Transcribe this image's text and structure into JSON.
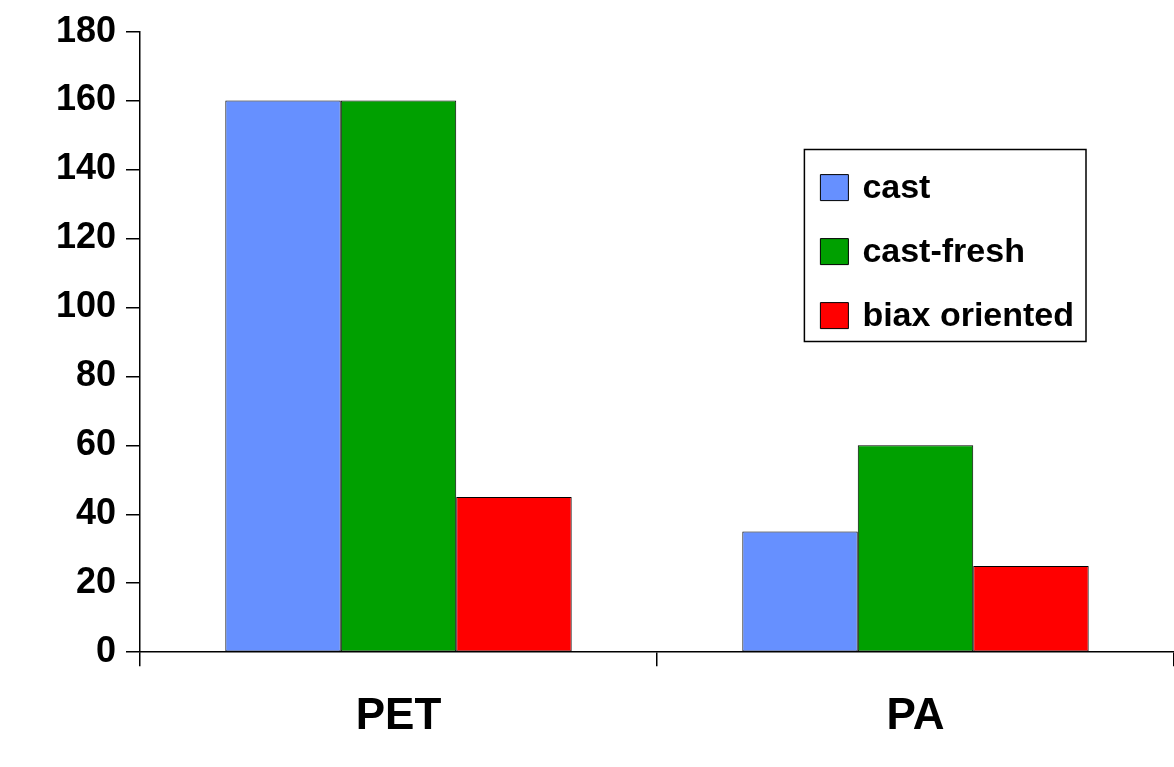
{
  "chart_data": {
    "type": "bar",
    "categories": [
      "PET",
      "PA"
    ],
    "series": [
      {
        "name": "cast",
        "color": "#6690ff",
        "values": [
          160,
          35
        ]
      },
      {
        "name": "cast-fresh",
        "color": "#00a000",
        "values": [
          160,
          60
        ]
      },
      {
        "name": "biax oriented",
        "color": "#ff0000",
        "values": [
          45,
          25
        ]
      }
    ],
    "ylim": [
      0,
      180
    ],
    "yticks": [
      0,
      20,
      40,
      60,
      80,
      100,
      120,
      140,
      160,
      180
    ],
    "grid": false,
    "legend": "top right"
  }
}
